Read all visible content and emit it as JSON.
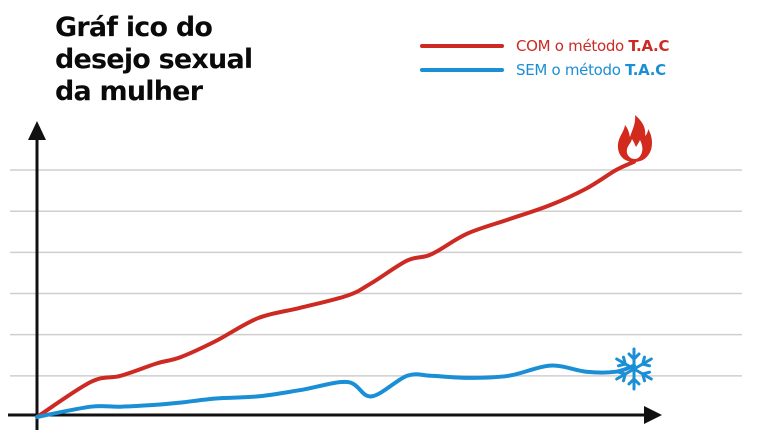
{
  "chart_data": {
    "type": "line",
    "title_lines": [
      "Gráf ico do",
      "desejo sexual",
      "da mulher"
    ],
    "xlabel": "",
    "ylabel": "",
    "grid": true,
    "axis_ticks": "none",
    "legend_position": "top-right",
    "x": [
      0,
      0.09,
      0.14,
      0.2,
      0.24,
      0.3,
      0.37,
      0.44,
      0.52,
      0.56,
      0.62,
      0.66,
      0.72,
      0.79,
      0.86,
      0.92,
      0.97,
      1.0
    ],
    "series": [
      {
        "name": "COM o método T.A.C",
        "name_plain": "COM o método",
        "name_bold": "T.A.C",
        "color": "#cc2a22",
        "end_marker": "fire-icon",
        "values": [
          0,
          0.17,
          0.2,
          0.26,
          0.29,
          0.37,
          0.48,
          0.53,
          0.59,
          0.65,
          0.76,
          0.79,
          0.89,
          0.96,
          1.03,
          1.11,
          1.2,
          1.24
        ]
      },
      {
        "name": "SEM o método T.A.C",
        "name_plain": "SEM o método",
        "name_bold": "T.A.C",
        "color": "#1a8fd6",
        "end_marker": "snowflake-icon",
        "values": [
          0,
          0.05,
          0.05,
          0.06,
          0.07,
          0.09,
          0.1,
          0.13,
          0.17,
          0.1,
          0.2,
          0.2,
          0.19,
          0.2,
          0.25,
          0.22,
          0.22,
          0.25
        ]
      }
    ],
    "ylim": [
      0,
      1.38
    ],
    "xlim": [
      0,
      1.0
    ]
  }
}
